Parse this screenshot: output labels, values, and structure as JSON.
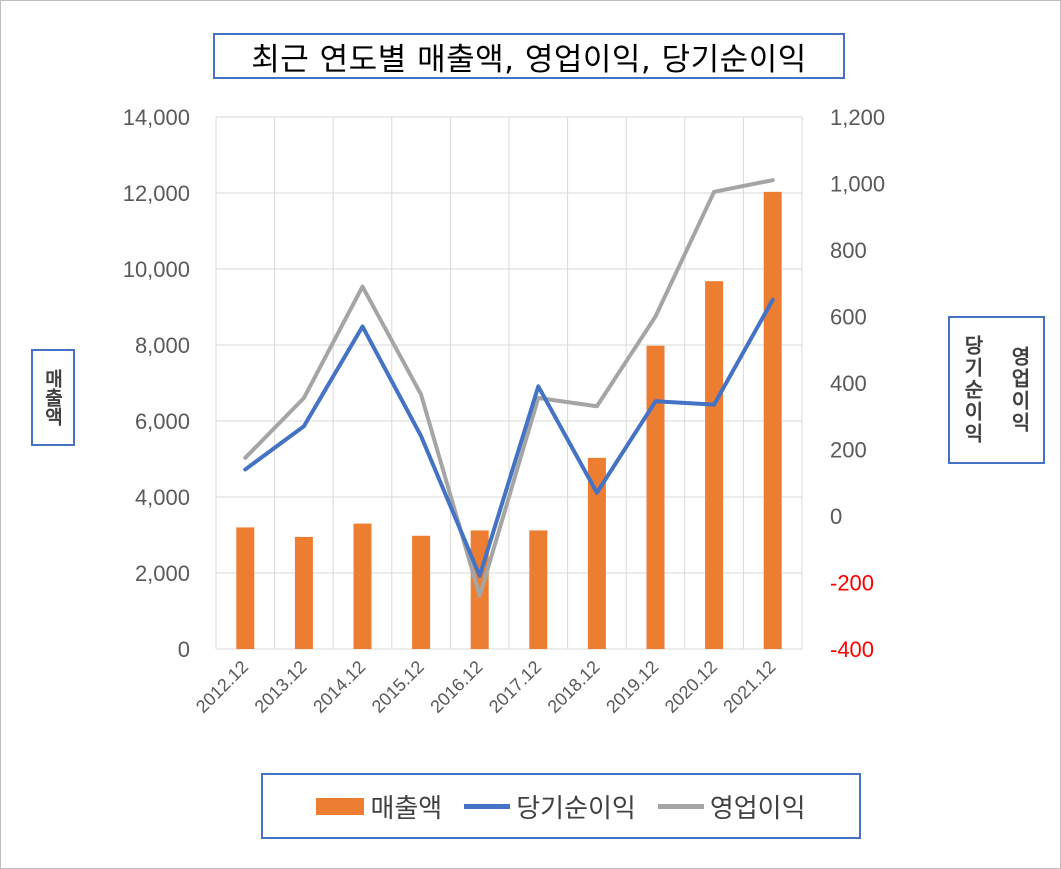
{
  "title": "최근 연도별 매출액, 영업이익, 당기순이익",
  "left_axis_label": "매출액",
  "right_axis_labels": [
    "당기순이익",
    "영업이익"
  ],
  "colors": {
    "revenue": "#ed7d31",
    "net_income": "#4472c4",
    "operating_income": "#a5a5a5",
    "negative_tick": "#ff0000",
    "frame_border": "#4472c4"
  },
  "chart_data": {
    "type": "bar",
    "categories": [
      "2012.12",
      "2013.12",
      "2014.12",
      "2015.12",
      "2016.12",
      "2017.12",
      "2018.12",
      "2019.12",
      "2020.12",
      "2021.12"
    ],
    "left_ylim": [
      0,
      14000
    ],
    "left_ticks": [
      "14,000",
      "12,000",
      "10,000",
      "8,000",
      "6,000",
      "4,000",
      "2,000",
      "0"
    ],
    "right_ylim": [
      -400,
      1200
    ],
    "right_ticks": [
      "1,200",
      "1,000",
      "800",
      "600",
      "400",
      "200",
      "0",
      "-200",
      "-400"
    ],
    "grid": true,
    "legend_position": "bottom",
    "series": [
      {
        "name": "매출액",
        "type": "bar",
        "axis": "left",
        "values": [
          3200,
          2950,
          3300,
          2980,
          3120,
          3120,
          5030,
          7980,
          9680,
          12030
        ]
      },
      {
        "name": "당기순이익",
        "type": "line",
        "axis": "right",
        "values": [
          140,
          270,
          570,
          240,
          -180,
          390,
          70,
          345,
          335,
          650
        ]
      },
      {
        "name": "영업이익",
        "type": "line",
        "axis": "right",
        "values": [
          175,
          355,
          690,
          365,
          -240,
          355,
          330,
          600,
          975,
          1010
        ]
      }
    ]
  }
}
